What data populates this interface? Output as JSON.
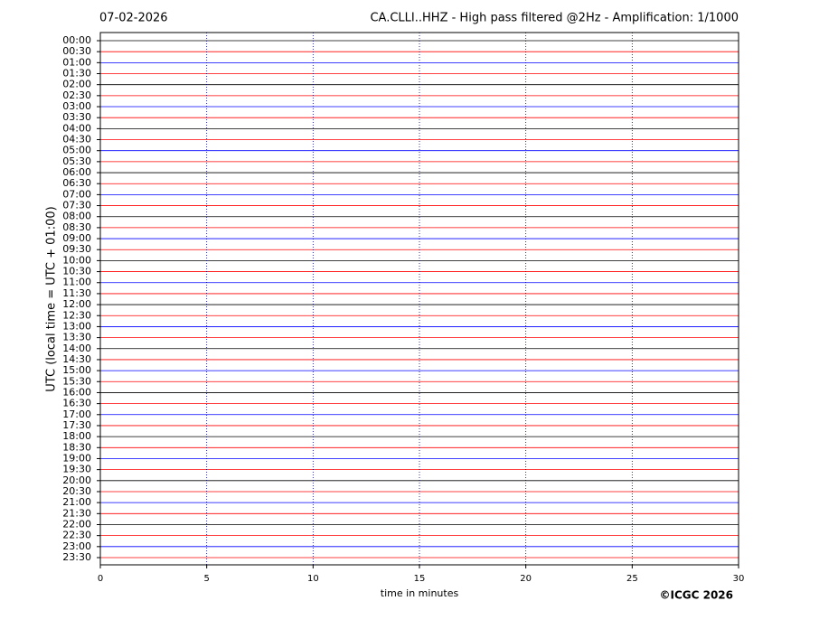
{
  "chart_data": {
    "type": "helicorder",
    "date": "07-02-2026",
    "title": "CA.CLLI..HHZ - High pass filtered @2Hz - Amplification: 1/1000",
    "xlabel": "time in minutes",
    "ylabel": "UTC (local time = UTC + 01:00)",
    "credit": "©ICGC 2026",
    "categories": [
      "00:00",
      "00:30",
      "01:00",
      "01:30",
      "02:00",
      "02:30",
      "03:00",
      "03:30",
      "04:00",
      "04:30",
      "05:00",
      "05:30",
      "06:00",
      "06:30",
      "07:00",
      "07:30",
      "08:00",
      "08:30",
      "09:00",
      "09:30",
      "10:00",
      "10:30",
      "11:00",
      "11:30",
      "12:00",
      "12:30",
      "13:00",
      "13:30",
      "14:00",
      "14:30",
      "15:00",
      "15:30",
      "16:00",
      "16:30",
      "17:00",
      "17:30",
      "18:00",
      "18:30",
      "19:00",
      "19:30",
      "20:00",
      "20:30",
      "21:00",
      "21:30",
      "22:00",
      "22:30",
      "23:00",
      "23:30"
    ],
    "colors": [
      "#000000",
      "#ff0000",
      "#0000ff",
      "#ff0000"
    ],
    "xlim": [
      0,
      30
    ],
    "xticks": [
      0,
      5,
      10,
      15,
      20,
      25,
      30
    ],
    "grid": true
  }
}
